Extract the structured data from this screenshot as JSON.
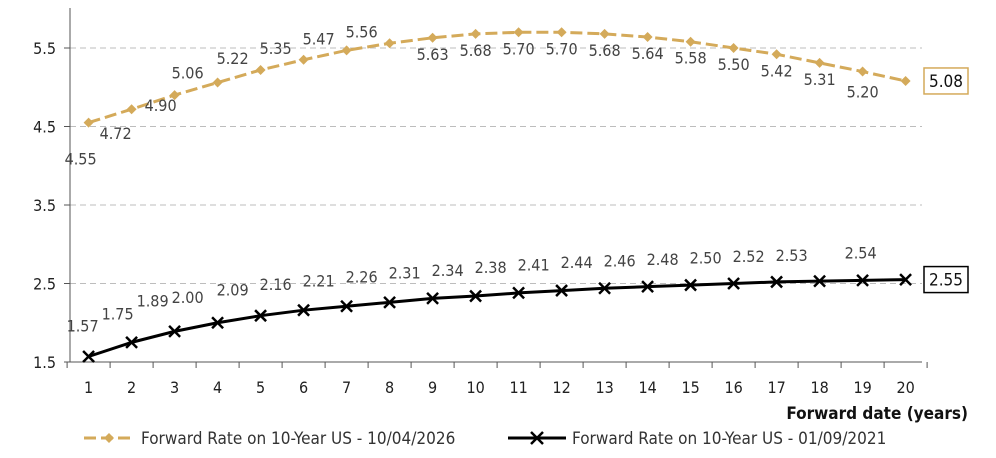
{
  "chart_data": {
    "type": "line",
    "title": "",
    "xlabel": "Forward date (years)",
    "ylabel": "",
    "x": [
      1,
      2,
      3,
      4,
      5,
      6,
      7,
      8,
      9,
      10,
      11,
      12,
      13,
      14,
      15,
      16,
      17,
      18,
      19,
      20
    ],
    "xlim": [
      1,
      20
    ],
    "ylim": [
      1.5,
      5.5
    ],
    "yticks": [
      "1.5",
      "2.5",
      "3.5",
      "4.5",
      "5.5"
    ],
    "grid": "horizontal dashed",
    "legend": "bottom",
    "series": [
      {
        "name": "Forward Rate on 10-Year US - 10/04/2026",
        "color": "#d4aa5a",
        "marker": "diamond",
        "line_style": "dashed",
        "values": [
          4.55,
          4.72,
          4.9,
          5.06,
          5.22,
          5.35,
          5.47,
          5.56,
          5.63,
          5.68,
          5.7,
          5.7,
          5.68,
          5.64,
          5.58,
          5.5,
          5.42,
          5.31,
          5.2,
          5.08
        ],
        "labels": [
          "4.55",
          "4.72",
          "4.90",
          "5.06",
          "5.22",
          "5.35",
          "5.47",
          "5.56",
          "5.63",
          "5.68",
          "5.70",
          "5.70",
          "5.68",
          "5.64",
          "5.58",
          "5.50",
          "5.42",
          "5.31",
          "5.20",
          "5.08"
        ]
      },
      {
        "name": "Forward Rate on 10-Year US - 01/09/2021",
        "color": "#000000",
        "marker": "x",
        "line_style": "solid",
        "values": [
          1.57,
          1.75,
          1.89,
          2.0,
          2.09,
          2.16,
          2.21,
          2.26,
          2.31,
          2.34,
          2.38,
          2.41,
          2.44,
          2.46,
          2.48,
          2.5,
          2.52,
          2.53,
          2.54,
          2.55
        ],
        "labels": [
          "1.57",
          "1.75",
          "1.89",
          "2.00",
          "2.09",
          "2.16",
          "2.21",
          "2.26",
          "2.31",
          "2.34",
          "2.38",
          "2.41",
          "2.44",
          "2.46",
          "2.48",
          "2.50",
          "2.52",
          "2.53",
          "2.54",
          "2.55"
        ]
      }
    ]
  }
}
